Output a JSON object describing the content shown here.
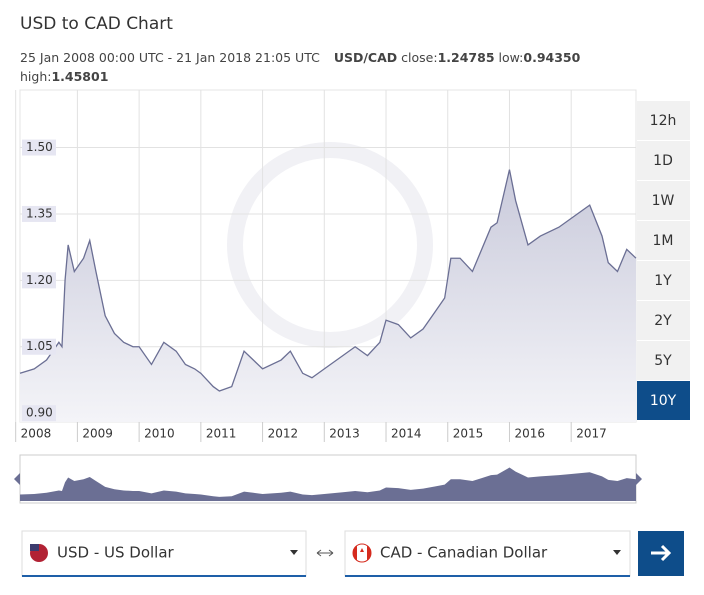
{
  "header": {
    "title": "USD to CAD Chart",
    "range": "25 Jan 2008 00:00 UTC - 21 Jan 2018 21:05 UTC",
    "pair": "USD/CAD",
    "close_label": "close:",
    "close_value": "1.24785",
    "low_label": "low:",
    "low_value": "0.94350",
    "high_label": "high:",
    "high_value": "1.45801"
  },
  "chart_data": {
    "type": "area",
    "color": "#6b6f94",
    "x": [
      2008.07,
      2008.3,
      2008.5,
      2008.7,
      2008.75,
      2008.8,
      2008.85,
      2008.95,
      2009.1,
      2009.2,
      2009.3,
      2009.45,
      2009.6,
      2009.75,
      2009.9,
      2010.0,
      2010.2,
      2010.4,
      2010.6,
      2010.75,
      2010.9,
      2011.0,
      2011.2,
      2011.3,
      2011.5,
      2011.7,
      2011.85,
      2012.0,
      2012.3,
      2012.45,
      2012.65,
      2012.8,
      2013.0,
      2013.3,
      2013.5,
      2013.7,
      2013.9,
      2014.0,
      2014.2,
      2014.4,
      2014.6,
      2014.8,
      2014.95,
      2015.05,
      2015.2,
      2015.4,
      2015.55,
      2015.7,
      2015.8,
      2016.0,
      2016.1,
      2016.3,
      2016.5,
      2016.8,
      2017.0,
      2017.3,
      2017.5,
      2017.6,
      2017.75,
      2017.9,
      2018.05
    ],
    "values": [
      0.99,
      1.0,
      1.02,
      1.06,
      1.05,
      1.2,
      1.28,
      1.22,
      1.25,
      1.29,
      1.22,
      1.12,
      1.08,
      1.06,
      1.05,
      1.05,
      1.01,
      1.06,
      1.04,
      1.01,
      1.0,
      0.99,
      0.96,
      0.95,
      0.96,
      1.04,
      1.02,
      1.0,
      1.02,
      1.04,
      0.99,
      0.98,
      1.0,
      1.03,
      1.05,
      1.03,
      1.06,
      1.11,
      1.1,
      1.07,
      1.09,
      1.13,
      1.16,
      1.25,
      1.25,
      1.22,
      1.27,
      1.32,
      1.33,
      1.45,
      1.38,
      1.28,
      1.3,
      1.32,
      1.34,
      1.37,
      1.3,
      1.24,
      1.22,
      1.27,
      1.25
    ],
    "xlim": [
      2008.07,
      2018.05
    ],
    "xticks": [
      2008,
      2009,
      2010,
      2011,
      2012,
      2013,
      2014,
      2015,
      2016,
      2017
    ],
    "ylim": [
      0.88,
      1.63
    ],
    "yticks": [
      {
        "value": 0.9,
        "label": "0.90"
      },
      {
        "value": 1.05,
        "label": "1.05"
      },
      {
        "value": 1.2,
        "label": "1.20"
      },
      {
        "value": 1.35,
        "label": "1.35"
      },
      {
        "value": 1.5,
        "label": "1.50"
      }
    ],
    "grid": true
  },
  "periods": {
    "options": [
      "12h",
      "1D",
      "1W",
      "1M",
      "1Y",
      "2Y",
      "5Y",
      "10Y"
    ],
    "selected": 7
  },
  "converter": {
    "from": "USD - US Dollar",
    "to": "CAD - Canadian Dollar"
  }
}
